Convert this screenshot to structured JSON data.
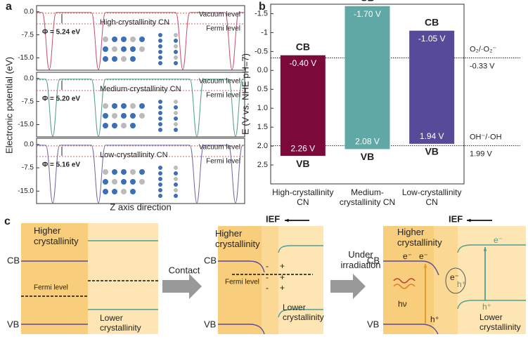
{
  "panel_a": {
    "label": "a",
    "y_axis_label": "Electronic potential (eV)",
    "x_axis_label": "Z axis direction",
    "ylim": [
      -19,
      2
    ],
    "yticks": [
      {
        "value": 0,
        "label": "0.0"
      },
      -7.5,
      {
        "value": -15,
        "label": "-15.0"
      }
    ],
    "plots": [
      {
        "name": "High-crystallinity CN",
        "work_function": "Φ = 5.24 eV",
        "vacuum_label": "Vacuum level",
        "fermi_label": "Fermi level",
        "color": "#c8506a"
      },
      {
        "name": "Medium-crystallinity CN",
        "work_function": "Φ = 5.20 eV",
        "vacuum_label": "Vacuum level",
        "fermi_label": "Fermi level",
        "color": "#4f9e86"
      },
      {
        "name": "Low-crystallinity CN",
        "work_function": "Φ = 5.16 eV",
        "vacuum_label": "Vacuum level",
        "fermi_label": "Fermi level",
        "color": "#6a6aa8"
      }
    ]
  },
  "chart_data": {
    "type": "floating_bar",
    "label": "b",
    "y_axis_label": "E (V vs. NHE pH=7)",
    "inverted": true,
    "ylim": [
      -1.75,
      3.0
    ],
    "yticks": [
      -1.5,
      -1.0,
      -0.5,
      {
        "value": 0,
        "label": "0.0"
      },
      0.5,
      {
        "value": 1,
        "label": "1.0"
      },
      1.5,
      {
        "value": 2,
        "label": "2.0"
      },
      2.5
    ],
    "categories": [
      "High-crystallinity CN",
      "Medium-crystallinity CN",
      "Low-crystallinity CN"
    ],
    "colors": [
      "#7b0a3a",
      "#5fa8a5",
      "#574a99"
    ],
    "cb_name": "CB",
    "vb_name": "VB",
    "cb_values": [
      -0.4,
      -1.7,
      -1.05
    ],
    "cb_value_labels": [
      "-0.40 V",
      "-1.70 V",
      "-1.05 V"
    ],
    "vb_values": [
      2.26,
      2.08,
      1.94
    ],
    "vb_value_labels": [
      "2.26 V",
      "2.08 V",
      "1.94 V"
    ],
    "reference_lines": [
      {
        "name": "O₂/·O₂⁻",
        "value": -0.33,
        "value_label": "-0.33 V"
      },
      {
        "name": "OH⁻/·OH",
        "value": 1.99,
        "value_label": "1.99 V"
      }
    ]
  },
  "panel_c": {
    "label": "c",
    "higher": "Higher crystallinity",
    "lower": "Lower crystallinity",
    "cb": "CB",
    "vb": "VB",
    "fermi": "Fermi level",
    "contact": "Contact",
    "irradiation": "Under irradiation",
    "ief": "IEF",
    "plus": "+",
    "minus": "-",
    "electron": "e⁻",
    "hole": "h⁺",
    "hv": "hν"
  }
}
